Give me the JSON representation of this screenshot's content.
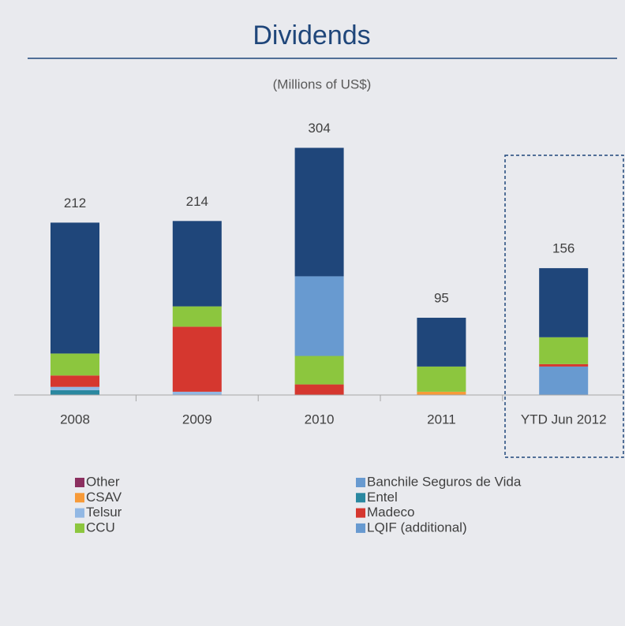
{
  "chart_data": {
    "type": "bar",
    "stacked": true,
    "title": "Dividends",
    "subtitle": "(Millions of US$)",
    "categories": [
      "2008",
      "2009",
      "2010",
      "2011",
      "YTD Jun 2012"
    ],
    "totals": [
      212,
      214,
      304,
      95,
      156
    ],
    "ylim": [
      0,
      320
    ],
    "series": [
      {
        "name": "Other",
        "color": "#8b2f5f",
        "values": [
          0,
          0,
          0,
          0,
          0
        ]
      },
      {
        "name": "Banchile Seguros de Vida",
        "color": "#689ad0",
        "values": [
          0,
          0,
          98,
          0,
          0
        ]
      },
      {
        "name": "CSAV",
        "color": "#f79a38",
        "values": [
          0,
          0,
          0,
          4,
          0
        ]
      },
      {
        "name": "Entel",
        "color": "#2a88a0",
        "values": [
          6,
          0,
          0,
          0,
          0
        ]
      },
      {
        "name": "Telsur",
        "color": "#92b8e4",
        "values": [
          4,
          4,
          0,
          0,
          0
        ]
      },
      {
        "name": "Madeco",
        "color": "#d5372f",
        "values": [
          14,
          80,
          13,
          0,
          3
        ]
      },
      {
        "name": "CCU",
        "color": "#8cc63e",
        "values": [
          27,
          25,
          35,
          31,
          33
        ]
      },
      {
        "name": "LQIF (additional)",
        "color": "#689ad0",
        "values": [
          0,
          0,
          0,
          0,
          35
        ]
      },
      {
        "color": "#1f467a",
        "values": [
          161,
          105,
          158,
          60,
          85
        ]
      }
    ]
  }
}
